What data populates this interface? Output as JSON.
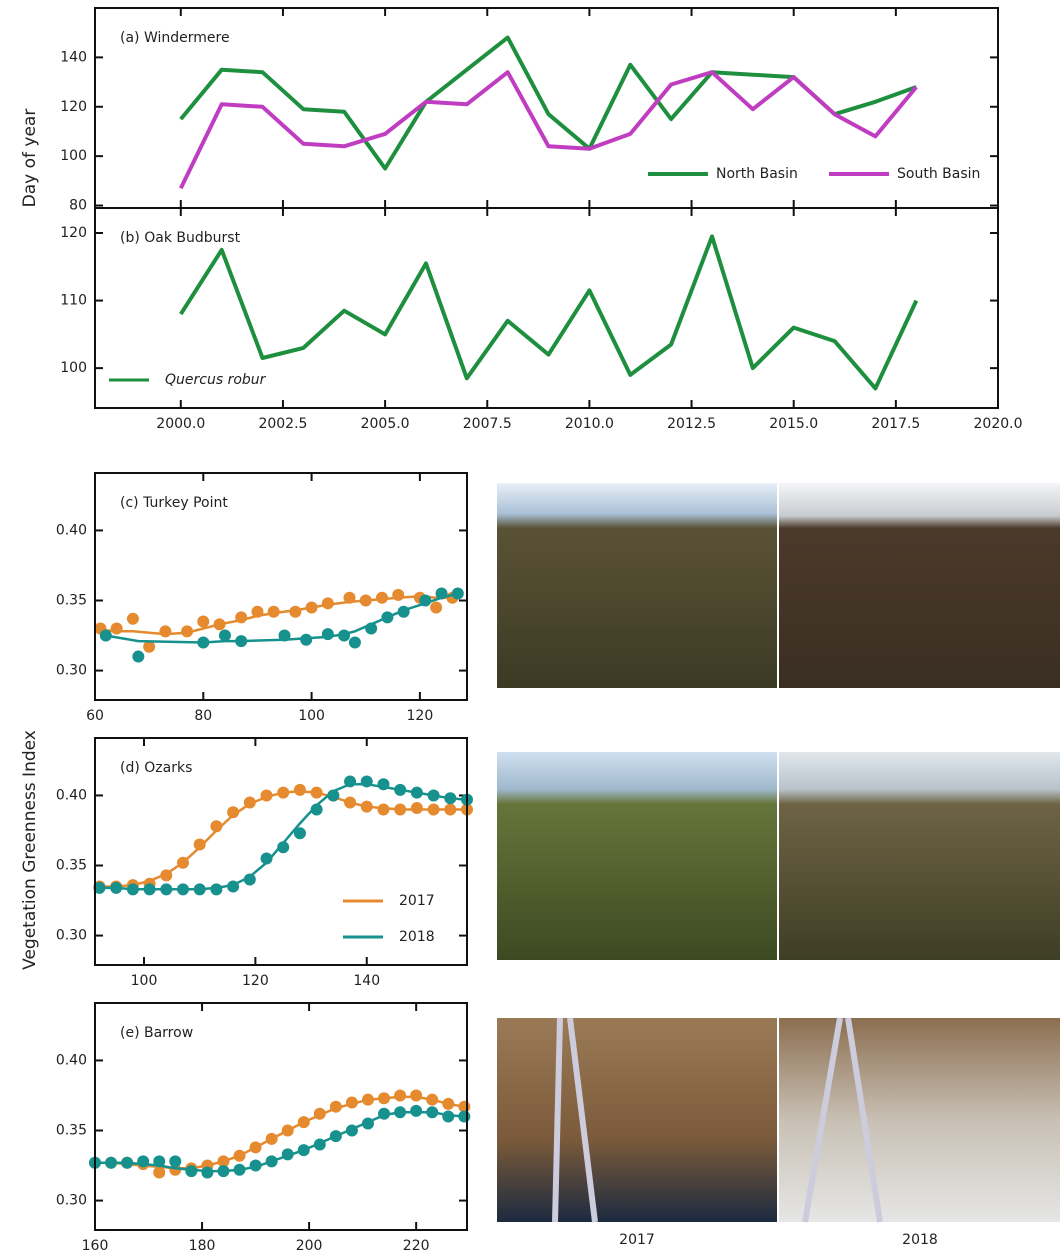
{
  "figure": {
    "ylabel_top": "Day of year",
    "ylabel_bottom": "Vegetation Greenness Index",
    "photo_captions": [
      "2017",
      "2018"
    ]
  },
  "chart_data": [
    {
      "type": "line",
      "title": "(a) Windermere",
      "x": [
        2000,
        2001,
        2002,
        2003,
        2004,
        2005,
        2006,
        2007,
        2008,
        2009,
        2010,
        2011,
        2012,
        2013,
        2014,
        2015,
        2016,
        2017,
        2018
      ],
      "series": [
        {
          "name": "North Basin",
          "color": "#1e8f3e",
          "values": [
            115,
            135,
            134,
            119,
            118,
            95,
            122,
            135,
            148,
            117,
            103,
            137,
            115,
            134,
            133,
            132,
            117,
            122,
            128
          ]
        },
        {
          "name": "South Basin",
          "color": "#c03cc0",
          "values": [
            87,
            121,
            120,
            105,
            104,
            109,
            122,
            121,
            134,
            104,
            103,
            109,
            129,
            134,
            119,
            132,
            117,
            108,
            128
          ]
        }
      ],
      "xlim": [
        1997.9,
        2020
      ],
      "ylim": [
        79,
        160
      ],
      "xticks": [
        2000,
        2002.5,
        2005,
        2007.5,
        2010,
        2012.5,
        2015,
        2017.5,
        2020
      ],
      "yticks": [
        80,
        100,
        120,
        140
      ],
      "legend": "lower right"
    },
    {
      "type": "line",
      "title": "(b) Oak Budburst",
      "x": [
        2000,
        2001,
        2002,
        2003,
        2004,
        2005,
        2006,
        2007,
        2008,
        2009,
        2010,
        2011,
        2012,
        2013,
        2014,
        2015,
        2016,
        2017,
        2018
      ],
      "series": [
        {
          "name": "Quercus robur",
          "color": "#1e8f3e",
          "values": [
            108,
            117.5,
            101.5,
            103,
            108.5,
            105,
            115.5,
            98.5,
            107,
            102,
            111.5,
            99,
            103.5,
            119.5,
            100,
            106,
            104,
            97,
            110
          ]
        }
      ],
      "xlim": [
        1997.9,
        2020
      ],
      "ylim": [
        94.1,
        123.7
      ],
      "xticks": [
        {
          "value": 2000,
          "label": "2000.0"
        },
        2002.5,
        {
          "value": 2005,
          "label": "2005.0"
        },
        2007.5,
        {
          "value": 2010,
          "label": "2010.0"
        },
        2012.5,
        {
          "value": 2015,
          "label": "2015.0"
        },
        2017.5,
        {
          "value": 2020,
          "label": "2020.0"
        }
      ],
      "yticks": [
        100,
        110,
        120
      ],
      "legend": "lower left"
    },
    {
      "type": "scatter",
      "title": "(c) Turkey Point",
      "series": [
        {
          "color": "#e58a2e",
          "x": [
            61,
            64,
            67,
            70,
            73,
            77,
            80,
            83,
            87,
            90,
            93,
            97,
            100,
            103,
            107,
            110,
            113,
            116,
            120,
            123,
            126
          ],
          "values": [
            0.33,
            0.33,
            0.337,
            0.317,
            0.328,
            0.328,
            0.335,
            0.333,
            0.338,
            0.342,
            0.342,
            0.342,
            0.345,
            0.348,
            0.352,
            0.35,
            0.352,
            0.354,
            0.352,
            0.345,
            0.352
          ],
          "fit": [
            0.329,
            0.328,
            0.328,
            0.327,
            0.326,
            0.327,
            0.33,
            0.333,
            0.336,
            0.339,
            0.341,
            0.343,
            0.345,
            0.347,
            0.349,
            0.35,
            0.351,
            0.352,
            0.353,
            0.352,
            0.352
          ]
        },
        {
          "color": "#17918d",
          "x": [
            62,
            68,
            80,
            84,
            87,
            95,
            99,
            103,
            106,
            108,
            111,
            114,
            117,
            121,
            124,
            127
          ],
          "values": [
            0.325,
            0.31,
            0.32,
            0.325,
            0.321,
            0.325,
            0.322,
            0.326,
            0.325,
            0.32,
            0.33,
            0.338,
            0.342,
            0.35,
            0.355,
            0.355
          ],
          "fit": [
            0.325,
            0.321,
            0.32,
            0.321,
            0.321,
            0.322,
            0.323,
            0.324,
            0.326,
            0.328,
            0.333,
            0.338,
            0.343,
            0.348,
            0.352,
            0.355
          ]
        }
      ],
      "xlim": [
        60,
        128.7
      ],
      "ylim": [
        0.279,
        0.441
      ],
      "xticks": [
        60,
        80,
        100,
        120
      ],
      "yticks": [
        {
          "value": 0.3,
          "label": "0.30"
        },
        0.35,
        {
          "value": 0.4,
          "label": "0.40"
        }
      ]
    },
    {
      "type": "scatter",
      "title": "(d) Ozarks",
      "series": [
        {
          "name": "2017",
          "color": "#e58a2e",
          "x": [
            92,
            95,
            98,
            101,
            104,
            107,
            110,
            113,
            116,
            119,
            122,
            125,
            128,
            131,
            134,
            137,
            140,
            143,
            146,
            149,
            152,
            155,
            158
          ],
          "values": [
            0.335,
            0.335,
            0.336,
            0.337,
            0.343,
            0.352,
            0.365,
            0.378,
            0.388,
            0.395,
            0.4,
            0.402,
            0.404,
            0.402,
            0.4,
            0.395,
            0.392,
            0.39,
            0.39,
            0.391,
            0.39,
            0.39,
            0.39
          ],
          "fit": [
            0.335,
            0.335,
            0.336,
            0.339,
            0.344,
            0.352,
            0.363,
            0.375,
            0.386,
            0.394,
            0.399,
            0.402,
            0.403,
            0.402,
            0.399,
            0.395,
            0.392,
            0.391,
            0.39,
            0.39,
            0.39,
            0.39,
            0.39
          ]
        },
        {
          "name": "2018",
          "color": "#17918d",
          "x": [
            92,
            95,
            98,
            101,
            104,
            107,
            110,
            113,
            116,
            119,
            122,
            125,
            128,
            131,
            134,
            137,
            140,
            143,
            146,
            149,
            152,
            155,
            158
          ],
          "values": [
            0.334,
            0.334,
            0.333,
            0.333,
            0.333,
            0.333,
            0.333,
            0.333,
            0.335,
            0.34,
            0.355,
            0.363,
            0.373,
            0.39,
            0.4,
            0.41,
            0.41,
            0.408,
            0.404,
            0.402,
            0.4,
            0.398,
            0.397
          ],
          "fit": [
            0.334,
            0.334,
            0.333,
            0.333,
            0.333,
            0.333,
            0.333,
            0.334,
            0.336,
            0.342,
            0.352,
            0.366,
            0.38,
            0.393,
            0.403,
            0.408,
            0.408,
            0.406,
            0.404,
            0.402,
            0.4,
            0.398,
            0.397
          ]
        }
      ],
      "xlim": [
        91.2,
        158
      ],
      "ylim": [
        0.279,
        0.441
      ],
      "xticks": [
        100,
        120,
        140
      ],
      "yticks": [
        {
          "value": 0.3,
          "label": "0.30"
        },
        0.35,
        {
          "value": 0.4,
          "label": "0.40"
        }
      ],
      "legend": "lower right"
    },
    {
      "type": "scatter",
      "title": "(e) Barrow",
      "series": [
        {
          "color": "#e58a2e",
          "x": [
            160,
            163,
            166,
            169,
            172,
            175,
            178,
            181,
            184,
            187,
            190,
            193,
            196,
            199,
            202,
            205,
            208,
            211,
            214,
            217,
            220,
            223,
            226,
            229
          ],
          "values": [
            0.327,
            0.327,
            0.327,
            0.326,
            0.32,
            0.322,
            0.323,
            0.325,
            0.328,
            0.332,
            0.338,
            0.344,
            0.35,
            0.356,
            0.362,
            0.367,
            0.37,
            0.372,
            0.373,
            0.375,
            0.375,
            0.372,
            0.369,
            0.367
          ],
          "fit": [
            0.327,
            0.327,
            0.326,
            0.325,
            0.324,
            0.323,
            0.323,
            0.325,
            0.328,
            0.332,
            0.338,
            0.344,
            0.35,
            0.356,
            0.361,
            0.366,
            0.369,
            0.372,
            0.373,
            0.374,
            0.374,
            0.372,
            0.369,
            0.367
          ]
        },
        {
          "color": "#17918d",
          "x": [
            160,
            163,
            166,
            169,
            172,
            175,
            178,
            181,
            184,
            187,
            190,
            193,
            196,
            199,
            202,
            205,
            208,
            211,
            214,
            217,
            220,
            223,
            226,
            229
          ],
          "values": [
            0.327,
            0.327,
            0.327,
            0.328,
            0.328,
            0.328,
            0.321,
            0.32,
            0.321,
            0.322,
            0.325,
            0.328,
            0.333,
            0.336,
            0.34,
            0.346,
            0.35,
            0.355,
            0.362,
            0.363,
            0.364,
            0.363,
            0.36,
            0.36
          ],
          "fit": [
            0.327,
            0.327,
            0.327,
            0.326,
            0.325,
            0.323,
            0.322,
            0.321,
            0.321,
            0.322,
            0.324,
            0.328,
            0.332,
            0.336,
            0.341,
            0.346,
            0.351,
            0.356,
            0.361,
            0.363,
            0.363,
            0.363,
            0.361,
            0.36
          ]
        }
      ],
      "xlim": [
        160,
        229.5
      ],
      "ylim": [
        0.279,
        0.441
      ],
      "xticks": [
        160,
        180,
        200,
        220
      ],
      "yticks": [
        {
          "value": 0.3,
          "label": "0.30"
        },
        0.35,
        {
          "value": 0.4,
          "label": "0.40"
        }
      ]
    }
  ]
}
